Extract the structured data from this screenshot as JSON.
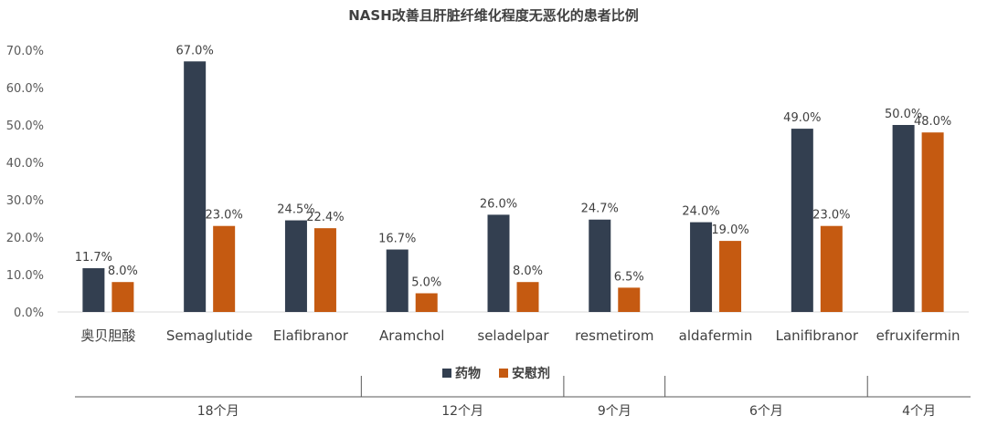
{
  "chart_data": {
    "type": "bar",
    "title": "NASH改善且肝脏纤维化程度无恶化的患者比例",
    "categories": [
      "奥贝胆酸",
      "Semaglutide",
      "Elafibranor",
      "Aramchol",
      "seladelpar",
      "resmetirom",
      "aldafermin",
      "Lanifibranor",
      "efruxifermin"
    ],
    "series": [
      {
        "name": "药物",
        "color": "#333f50",
        "values": [
          11.7,
          67.0,
          24.5,
          16.7,
          26.0,
          24.7,
          24.0,
          49.0,
          50.0
        ],
        "labels": [
          "11.7%",
          "67.0%",
          "24.5%",
          "16.7%",
          "26.0%",
          "24.7%",
          "24.0%",
          "49.0%",
          "50.0%"
        ]
      },
      {
        "name": "安慰剂",
        "color": "#c55a11",
        "values": [
          8.0,
          23.0,
          22.4,
          5.0,
          8.0,
          6.5,
          19.0,
          23.0,
          48.0
        ],
        "labels": [
          "8.0%",
          "23.0%",
          "22.4%",
          "5.0%",
          "8.0%",
          "6.5%",
          "19.0%",
          "23.0%",
          "48.0%"
        ]
      }
    ],
    "ylim": [
      0,
      70
    ],
    "yticks": [
      0,
      10,
      20,
      30,
      40,
      50,
      60,
      70
    ],
    "ytick_labels": [
      "0.0%",
      "10.0%",
      "20.0%",
      "30.0%",
      "40.0%",
      "50.0%",
      "60.0%",
      "70.0%"
    ],
    "legend_position": "bottom",
    "grid": false,
    "groups": [
      {
        "label": "18个月",
        "start": 0,
        "end": 2
      },
      {
        "label": "12个月",
        "start": 3,
        "end": 4
      },
      {
        "label": "9个月",
        "start": 5,
        "end": 5
      },
      {
        "label": "6个月",
        "start": 6,
        "end": 7
      },
      {
        "label": "4个月",
        "start": 8,
        "end": 8
      }
    ]
  }
}
